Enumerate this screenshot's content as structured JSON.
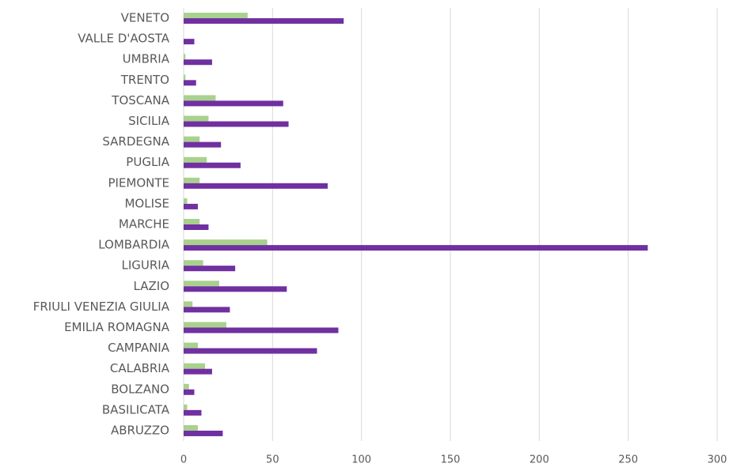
{
  "chart_data": {
    "type": "bar",
    "orientation": "horizontal",
    "categories": [
      "ABRUZZO",
      "BASILICATA",
      "BOLZANO",
      "CALABRIA",
      "CAMPANIA",
      "EMILIA ROMAGNA",
      "FRIULI VENEZIA GIULIA",
      "LAZIO",
      "LIGURIA",
      "LOMBARDIA",
      "MARCHE",
      "MOLISE",
      "PIEMONTE",
      "PUGLIA",
      "SARDEGNA",
      "SICILIA",
      "TOSCANA",
      "TRENTO",
      "UMBRIA",
      "VALLE D'AOSTA",
      "VENETO"
    ],
    "series": [
      {
        "color": "#a9d18e",
        "values": [
          8,
          2,
          3,
          12,
          8,
          24,
          5,
          20,
          11,
          47,
          9,
          2,
          9,
          13,
          9,
          14,
          18,
          1,
          1,
          0,
          36
        ]
      },
      {
        "color": "#7030a0",
        "values": [
          22,
          10,
          6,
          16,
          75,
          87,
          26,
          58,
          29,
          261,
          14,
          8,
          81,
          32,
          21,
          59,
          56,
          7,
          16,
          6,
          90
        ]
      }
    ],
    "xlim": [
      0,
      300
    ],
    "xticks": [
      0,
      50,
      100,
      150,
      200,
      250,
      300
    ],
    "grid": true
  }
}
